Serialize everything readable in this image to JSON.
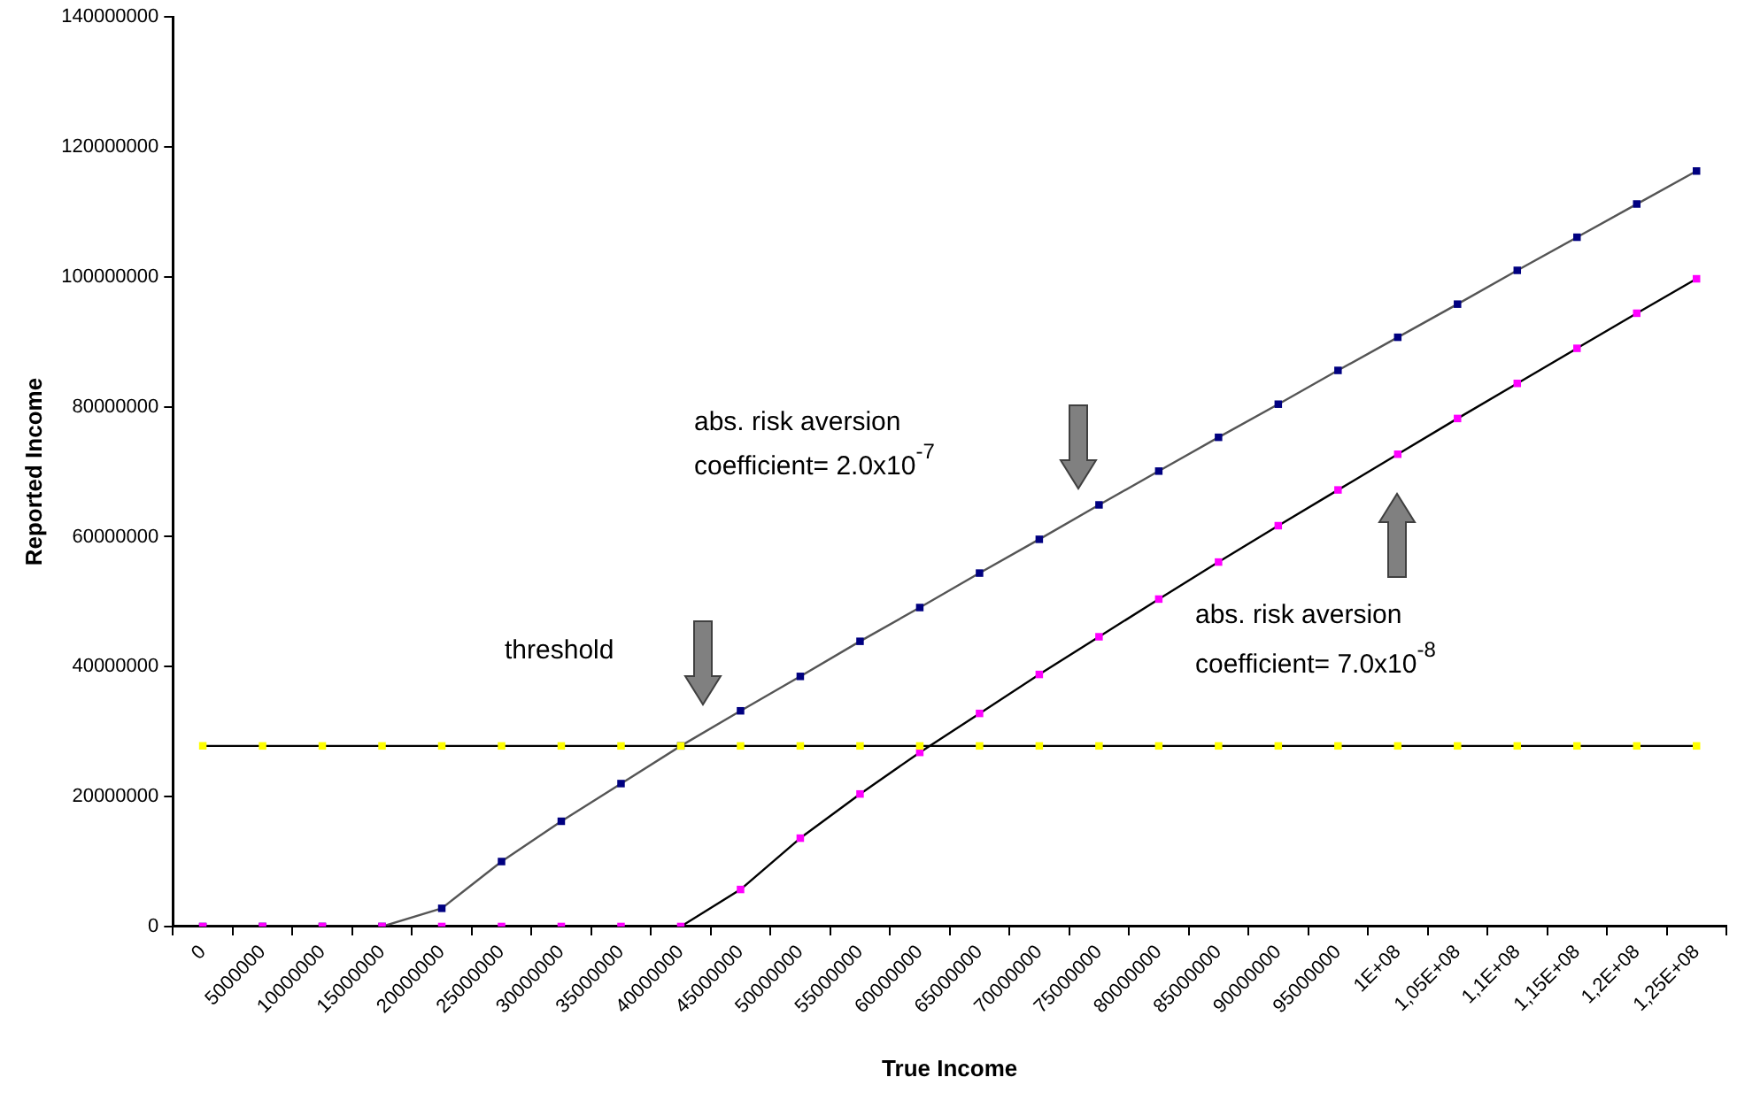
{
  "chart_data": {
    "type": "line",
    "xlabel": "True Income",
    "ylabel": "Reported Income",
    "categories": [
      "0",
      "5000000",
      "10000000",
      "15000000",
      "20000000",
      "25000000",
      "30000000",
      "35000000",
      "40000000",
      "45000000",
      "50000000",
      "55000000",
      "60000000",
      "65000000",
      "70000000",
      "75000000",
      "80000000",
      "85000000",
      "90000000",
      "95000000",
      "1E+08",
      "1,05E+08",
      "1,1E+08",
      "1,15E+08",
      "1,2E+08",
      "1,25E+08"
    ],
    "series": [
      {
        "color": "#000080",
        "values": [
          0,
          0,
          0,
          0,
          2800000,
          10000000,
          16200000,
          22000000,
          27800000,
          33200000,
          38500000,
          43900000,
          49100000,
          54400000,
          59600000,
          64900000,
          70100000,
          75300000,
          80400000,
          85600000,
          90700000,
          95800000,
          101000000,
          106100000,
          111200000,
          116300000
        ]
      },
      {
        "color": "#ff00ff",
        "values": [
          0,
          0,
          0,
          0,
          0,
          0,
          0,
          0,
          0,
          5700000,
          13600000,
          20400000,
          26800000,
          32800000,
          38800000,
          44600000,
          50400000,
          56100000,
          61700000,
          67200000,
          72700000,
          78200000,
          83600000,
          89000000,
          94400000,
          99700000
        ]
      },
      {
        "color": "#ffff00",
        "values": [
          27800000,
          27800000,
          27800000,
          27800000,
          27800000,
          27800000,
          27800000,
          27800000,
          27800000,
          27800000,
          27800000,
          27800000,
          27800000,
          27800000,
          27800000,
          27800000,
          27800000,
          27800000,
          27800000,
          27800000,
          27800000,
          27800000,
          27800000,
          27800000,
          27800000,
          27800000
        ]
      }
    ],
    "ylim": [
      0,
      140000000
    ],
    "yticks": [
      0,
      20000000,
      40000000,
      60000000,
      80000000,
      100000000,
      120000000,
      140000000
    ],
    "marker": "square",
    "line_style": "solid",
    "annotations": [
      "threshold",
      "abs. risk aversion coefficient= 2.0x10$^{-7}$",
      "abs. risk aversion coefficient= 7.0x10$^{-8}$"
    ]
  }
}
